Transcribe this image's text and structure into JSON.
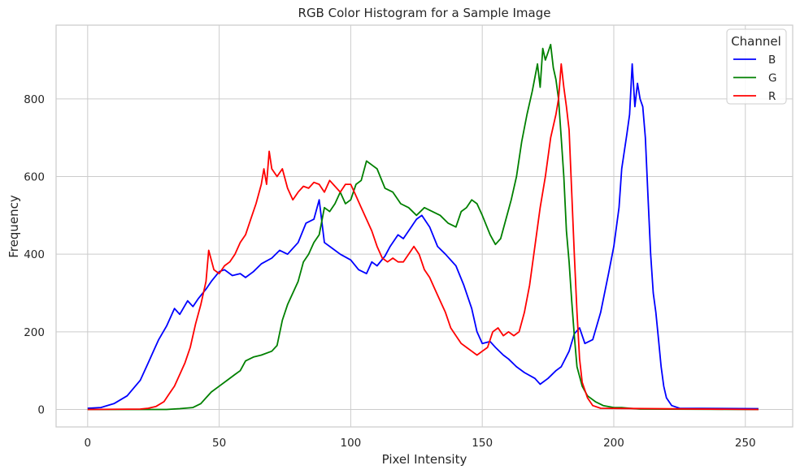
{
  "chart_data": {
    "type": "line",
    "title": "RGB Color Histogram for a Sample Image",
    "xlabel": "Pixel Intensity",
    "ylabel": "Frequency",
    "xlim": [
      -12,
      268
    ],
    "ylim": [
      -45,
      990
    ],
    "xticks": [
      0,
      50,
      100,
      150,
      200,
      250
    ],
    "yticks": [
      0,
      200,
      400,
      600,
      800
    ],
    "grid": true,
    "legend": {
      "title": "Channel",
      "placement": "top-right"
    },
    "series": [
      {
        "name": "B",
        "color": "#0000ff",
        "points": [
          [
            0,
            3
          ],
          [
            5,
            5
          ],
          [
            10,
            15
          ],
          [
            15,
            35
          ],
          [
            20,
            75
          ],
          [
            23,
            120
          ],
          [
            25,
            150
          ],
          [
            27,
            180
          ],
          [
            30,
            215
          ],
          [
            33,
            260
          ],
          [
            35,
            245
          ],
          [
            38,
            280
          ],
          [
            40,
            265
          ],
          [
            42,
            285
          ],
          [
            45,
            310
          ],
          [
            47,
            330
          ],
          [
            50,
            355
          ],
          [
            52,
            360
          ],
          [
            55,
            345
          ],
          [
            58,
            350
          ],
          [
            60,
            340
          ],
          [
            63,
            355
          ],
          [
            66,
            375
          ],
          [
            70,
            390
          ],
          [
            73,
            410
          ],
          [
            76,
            400
          ],
          [
            80,
            430
          ],
          [
            83,
            480
          ],
          [
            86,
            490
          ],
          [
            88,
            540
          ],
          [
            90,
            430
          ],
          [
            93,
            415
          ],
          [
            96,
            400
          ],
          [
            100,
            385
          ],
          [
            103,
            360
          ],
          [
            106,
            350
          ],
          [
            108,
            380
          ],
          [
            110,
            370
          ],
          [
            113,
            395
          ],
          [
            115,
            420
          ],
          [
            118,
            450
          ],
          [
            120,
            440
          ],
          [
            123,
            470
          ],
          [
            125,
            490
          ],
          [
            127,
            500
          ],
          [
            130,
            470
          ],
          [
            133,
            420
          ],
          [
            136,
            400
          ],
          [
            140,
            370
          ],
          [
            143,
            320
          ],
          [
            146,
            260
          ],
          [
            148,
            200
          ],
          [
            150,
            170
          ],
          [
            153,
            175
          ],
          [
            155,
            160
          ],
          [
            158,
            140
          ],
          [
            160,
            130
          ],
          [
            163,
            110
          ],
          [
            166,
            95
          ],
          [
            170,
            80
          ],
          [
            172,
            65
          ],
          [
            175,
            80
          ],
          [
            178,
            100
          ],
          [
            180,
            110
          ],
          [
            183,
            150
          ],
          [
            185,
            195
          ],
          [
            187,
            210
          ],
          [
            189,
            170
          ],
          [
            192,
            180
          ],
          [
            195,
            250
          ],
          [
            198,
            350
          ],
          [
            200,
            420
          ],
          [
            202,
            520
          ],
          [
            203,
            620
          ],
          [
            205,
            710
          ],
          [
            206,
            760
          ],
          [
            207,
            890
          ],
          [
            208,
            780
          ],
          [
            209,
            840
          ],
          [
            210,
            800
          ],
          [
            211,
            780
          ],
          [
            212,
            700
          ],
          [
            213,
            550
          ],
          [
            214,
            400
          ],
          [
            215,
            300
          ],
          [
            216,
            250
          ],
          [
            217,
            180
          ],
          [
            218,
            110
          ],
          [
            219,
            60
          ],
          [
            220,
            30
          ],
          [
            222,
            10
          ],
          [
            225,
            3
          ],
          [
            255,
            2
          ]
        ]
      },
      {
        "name": "G",
        "color": "#008000",
        "points": [
          [
            0,
            0
          ],
          [
            30,
            0
          ],
          [
            35,
            2
          ],
          [
            40,
            5
          ],
          [
            43,
            15
          ],
          [
            45,
            30
          ],
          [
            47,
            45
          ],
          [
            50,
            60
          ],
          [
            53,
            75
          ],
          [
            56,
            90
          ],
          [
            58,
            100
          ],
          [
            60,
            125
          ],
          [
            63,
            135
          ],
          [
            66,
            140
          ],
          [
            70,
            150
          ],
          [
            72,
            165
          ],
          [
            74,
            230
          ],
          [
            76,
            270
          ],
          [
            78,
            300
          ],
          [
            80,
            330
          ],
          [
            82,
            380
          ],
          [
            84,
            400
          ],
          [
            86,
            430
          ],
          [
            88,
            450
          ],
          [
            90,
            520
          ],
          [
            92,
            510
          ],
          [
            94,
            530
          ],
          [
            96,
            560
          ],
          [
            98,
            530
          ],
          [
            100,
            540
          ],
          [
            102,
            580
          ],
          [
            104,
            590
          ],
          [
            106,
            640
          ],
          [
            108,
            630
          ],
          [
            110,
            620
          ],
          [
            113,
            570
          ],
          [
            116,
            560
          ],
          [
            119,
            530
          ],
          [
            122,
            520
          ],
          [
            125,
            500
          ],
          [
            128,
            520
          ],
          [
            131,
            510
          ],
          [
            134,
            500
          ],
          [
            137,
            480
          ],
          [
            140,
            470
          ],
          [
            142,
            510
          ],
          [
            144,
            520
          ],
          [
            146,
            540
          ],
          [
            148,
            530
          ],
          [
            150,
            500
          ],
          [
            153,
            450
          ],
          [
            155,
            425
          ],
          [
            157,
            440
          ],
          [
            159,
            490
          ],
          [
            161,
            540
          ],
          [
            163,
            600
          ],
          [
            165,
            690
          ],
          [
            167,
            760
          ],
          [
            169,
            820
          ],
          [
            171,
            890
          ],
          [
            172,
            830
          ],
          [
            173,
            930
          ],
          [
            174,
            900
          ],
          [
            175,
            920
          ],
          [
            176,
            940
          ],
          [
            177,
            880
          ],
          [
            178,
            850
          ],
          [
            179,
            800
          ],
          [
            180,
            700
          ],
          [
            181,
            600
          ],
          [
            182,
            460
          ],
          [
            183,
            380
          ],
          [
            184,
            280
          ],
          [
            185,
            190
          ],
          [
            186,
            110
          ],
          [
            188,
            60
          ],
          [
            190,
            35
          ],
          [
            193,
            20
          ],
          [
            196,
            10
          ],
          [
            200,
            5
          ],
          [
            203,
            5
          ],
          [
            206,
            3
          ],
          [
            210,
            1
          ],
          [
            255,
            0
          ]
        ]
      },
      {
        "name": "R",
        "color": "#ff0000",
        "points": [
          [
            0,
            0
          ],
          [
            20,
            1
          ],
          [
            23,
            3
          ],
          [
            26,
            8
          ],
          [
            29,
            20
          ],
          [
            31,
            40
          ],
          [
            33,
            60
          ],
          [
            35,
            90
          ],
          [
            37,
            120
          ],
          [
            39,
            160
          ],
          [
            41,
            220
          ],
          [
            43,
            270
          ],
          [
            45,
            330
          ],
          [
            46,
            410
          ],
          [
            48,
            360
          ],
          [
            50,
            350
          ],
          [
            52,
            370
          ],
          [
            54,
            380
          ],
          [
            56,
            400
          ],
          [
            58,
            430
          ],
          [
            60,
            450
          ],
          [
            62,
            490
          ],
          [
            64,
            530
          ],
          [
            66,
            580
          ],
          [
            67,
            620
          ],
          [
            68,
            580
          ],
          [
            69,
            665
          ],
          [
            70,
            620
          ],
          [
            72,
            600
          ],
          [
            74,
            620
          ],
          [
            76,
            570
          ],
          [
            78,
            540
          ],
          [
            80,
            560
          ],
          [
            82,
            575
          ],
          [
            84,
            570
          ],
          [
            86,
            585
          ],
          [
            88,
            580
          ],
          [
            90,
            560
          ],
          [
            92,
            590
          ],
          [
            94,
            575
          ],
          [
            96,
            560
          ],
          [
            98,
            580
          ],
          [
            100,
            580
          ],
          [
            102,
            550
          ],
          [
            104,
            520
          ],
          [
            106,
            490
          ],
          [
            108,
            460
          ],
          [
            110,
            420
          ],
          [
            112,
            390
          ],
          [
            114,
            380
          ],
          [
            116,
            390
          ],
          [
            118,
            380
          ],
          [
            120,
            380
          ],
          [
            122,
            400
          ],
          [
            124,
            420
          ],
          [
            126,
            400
          ],
          [
            128,
            360
          ],
          [
            130,
            340
          ],
          [
            132,
            310
          ],
          [
            134,
            280
          ],
          [
            136,
            250
          ],
          [
            138,
            210
          ],
          [
            140,
            190
          ],
          [
            142,
            170
          ],
          [
            144,
            160
          ],
          [
            146,
            150
          ],
          [
            148,
            140
          ],
          [
            150,
            150
          ],
          [
            152,
            160
          ],
          [
            154,
            200
          ],
          [
            156,
            210
          ],
          [
            158,
            190
          ],
          [
            160,
            200
          ],
          [
            162,
            190
          ],
          [
            164,
            200
          ],
          [
            166,
            250
          ],
          [
            168,
            320
          ],
          [
            170,
            420
          ],
          [
            172,
            520
          ],
          [
            174,
            600
          ],
          [
            176,
            700
          ],
          [
            178,
            760
          ],
          [
            179,
            800
          ],
          [
            180,
            890
          ],
          [
            181,
            830
          ],
          [
            182,
            780
          ],
          [
            183,
            720
          ],
          [
            184,
            560
          ],
          [
            185,
            400
          ],
          [
            186,
            250
          ],
          [
            187,
            130
          ],
          [
            188,
            70
          ],
          [
            190,
            30
          ],
          [
            192,
            10
          ],
          [
            195,
            3
          ],
          [
            255,
            0
          ]
        ]
      }
    ]
  }
}
